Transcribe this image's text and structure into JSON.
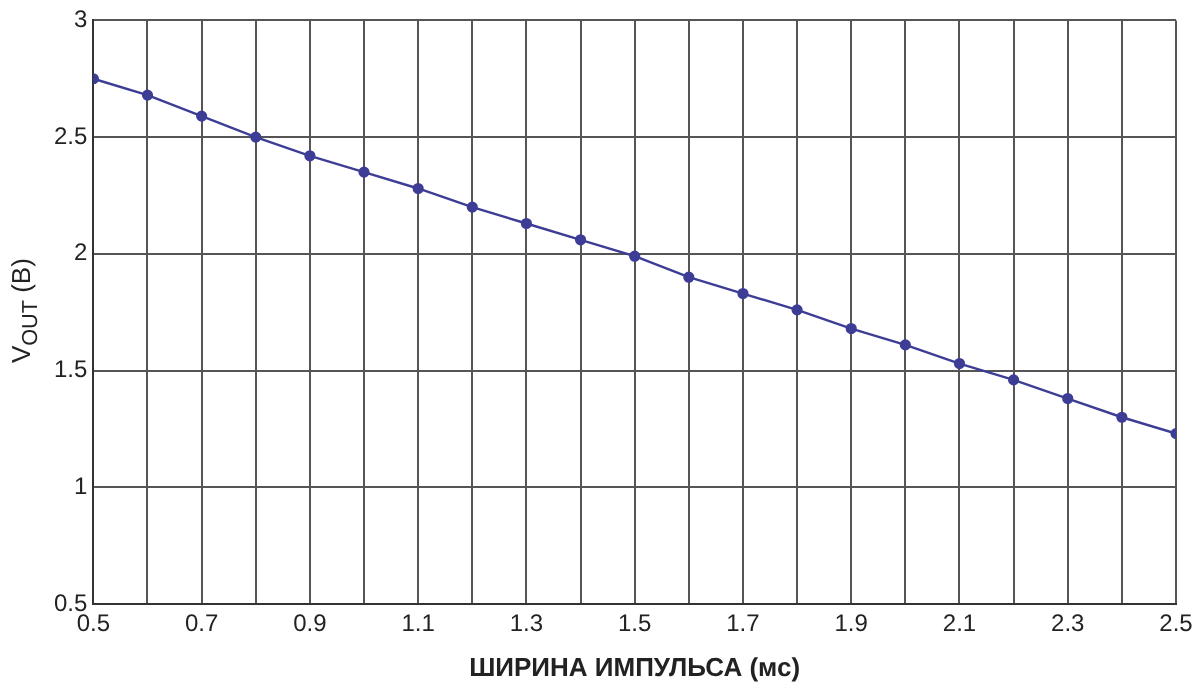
{
  "chart_data": {
    "type": "line",
    "xlabel": "ШИРИНА ИМПУЛЬСА (мс)",
    "ylabel": "V$_{OUT}$ (В)",
    "x": [
      0.5,
      0.6,
      0.7,
      0.8,
      0.9,
      1.0,
      1.1,
      1.2,
      1.3,
      1.4,
      1.5,
      1.6,
      1.7,
      1.8,
      1.9,
      2.0,
      2.1,
      2.2,
      2.3,
      2.4,
      2.5
    ],
    "series": [
      {
        "color": "#3d3d96",
        "values": [
          2.75,
          2.68,
          2.59,
          2.5,
          2.42,
          2.35,
          2.28,
          2.2,
          2.13,
          2.06,
          1.99,
          1.9,
          1.83,
          1.76,
          1.68,
          1.61,
          1.53,
          1.46,
          1.38,
          1.3,
          1.23
        ]
      }
    ],
    "xlim": [
      0.5,
      2.5
    ],
    "xticks": [
      0.5,
      {
        "value": 0.6,
        "label": null
      },
      0.7,
      {
        "value": 0.8,
        "label": null
      },
      0.9,
      {
        "value": 1.0,
        "label": null
      },
      1.1,
      {
        "value": 1.2,
        "label": null
      },
      1.3,
      {
        "value": 1.4,
        "label": null
      },
      1.5,
      {
        "value": 1.6,
        "label": null
      },
      1.7,
      {
        "value": 1.8,
        "label": null
      },
      1.9,
      {
        "value": 2.0,
        "label": null
      },
      2.1,
      {
        "value": 2.2,
        "label": null
      },
      2.3,
      {
        "value": 2.4,
        "label": null
      },
      2.5
    ],
    "ylim": [
      0.5,
      3
    ],
    "yticks": [
      0.5,
      1,
      1.5,
      2,
      2.5,
      3
    ],
    "grid": true,
    "legend": false,
    "marker": "circle",
    "line_style": "solid"
  }
}
